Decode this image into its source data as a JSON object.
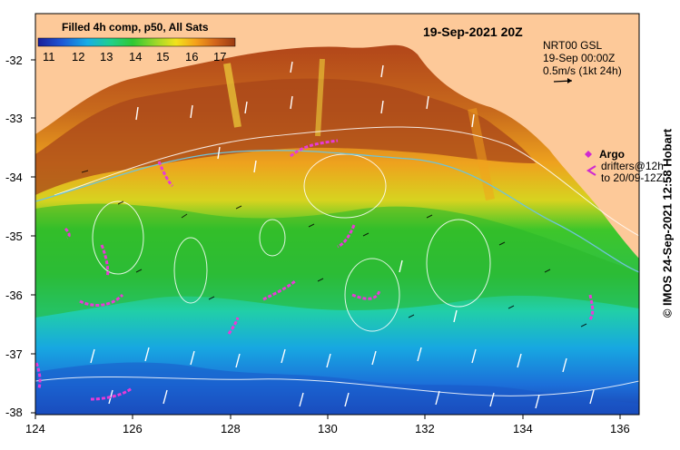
{
  "colorbar": {
    "title": "Filled 4h comp, p50, All Sats",
    "ticks": [
      "11",
      "12",
      "13",
      "14",
      "15",
      "16",
      "17"
    ]
  },
  "map": {
    "date_label": "19-Sep-2021 20Z",
    "x_ticks": [
      "124",
      "126",
      "128",
      "130",
      "132",
      "134",
      "136"
    ],
    "y_ticks": [
      "-32",
      "-33",
      "-34",
      "-35",
      "-36",
      "-37",
      "-38"
    ],
    "land_color": "#fdc999"
  },
  "legend": {
    "source": "NRT00 GSL",
    "time": "19-Sep 00:00Z",
    "scale": "0.5m/s (1kt 24h)",
    "argo": "Argo",
    "drifters_line1": "drifters@12h",
    "drifters_line2": "to 20/09-12Z"
  },
  "footer": {
    "credit": "© IMOS 24-Sep-2021 12:58 Hobart"
  }
}
